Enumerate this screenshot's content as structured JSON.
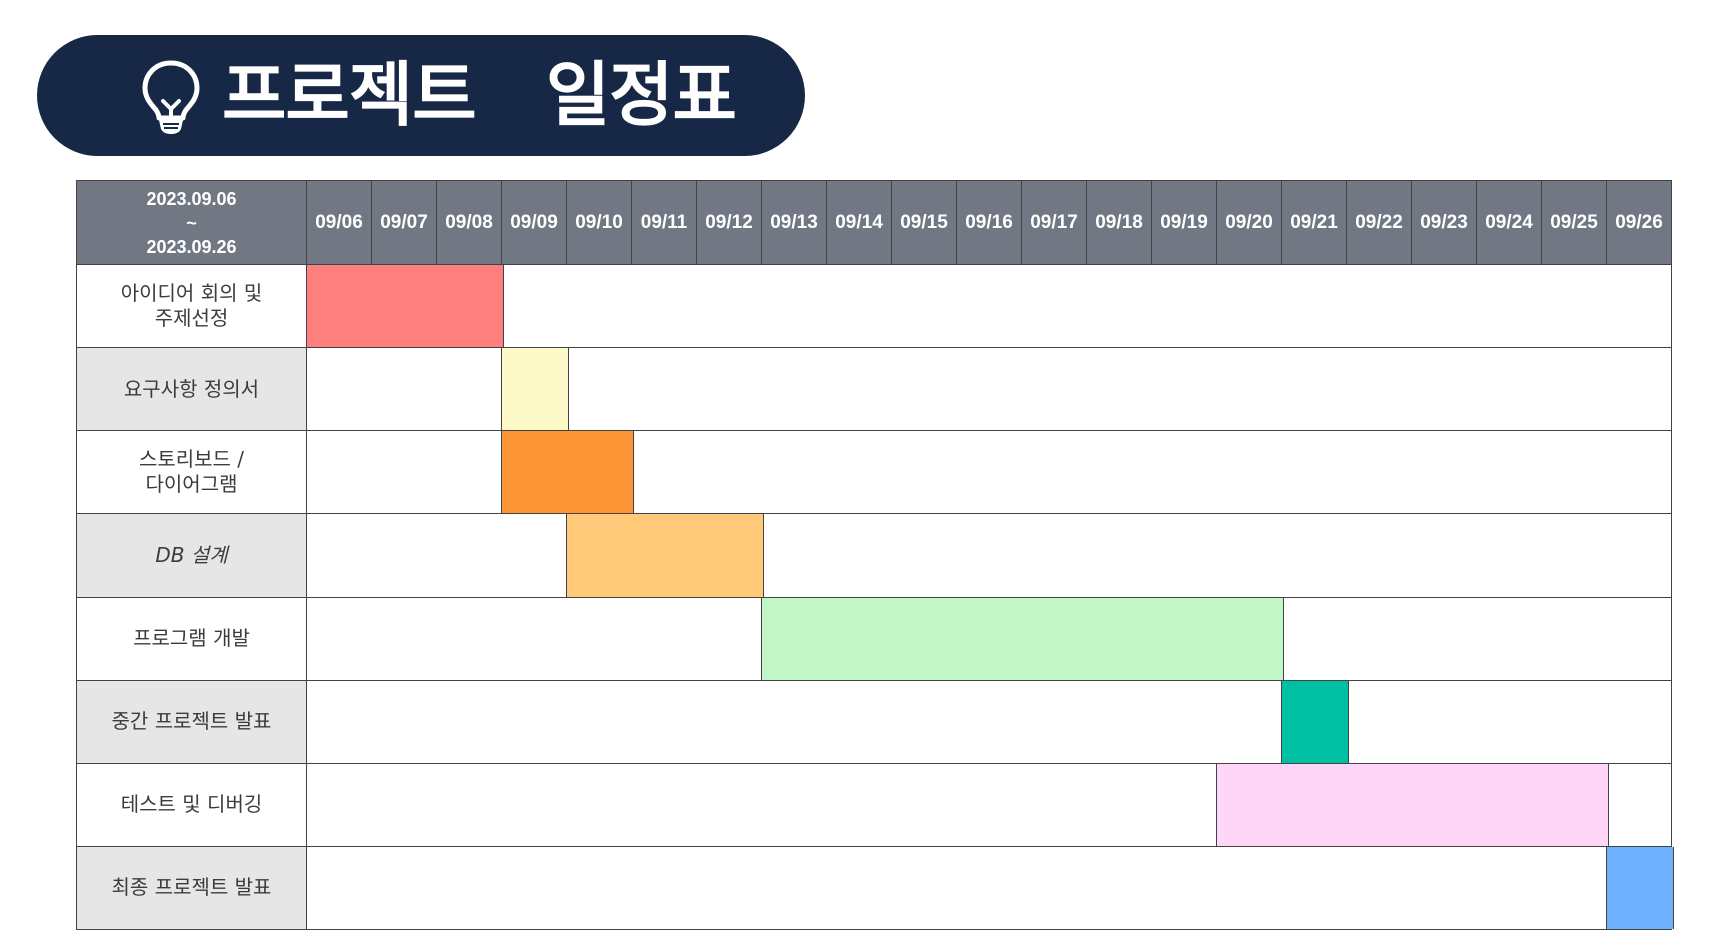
{
  "title": {
    "text": "프로젝트   일정표",
    "icon": "lightbulb-icon",
    "background": "#172846"
  },
  "schedule": {
    "range_start": "2023.09.06",
    "range_sep": "~",
    "range_end": "2023.09.26",
    "dates": [
      "09/06",
      "09/07",
      "09/08",
      "09/09",
      "09/10",
      "09/11",
      "09/12",
      "09/13",
      "09/14",
      "09/15",
      "09/16",
      "09/17",
      "09/18",
      "09/19",
      "09/20",
      "09/21",
      "09/22",
      "09/23",
      "09/24",
      "09/25",
      "09/26"
    ],
    "tasks": [
      {
        "label": "아이디어 회의 및\n주제선정",
        "start": "09/06",
        "end": "09/08",
        "color": "#ff7f7f"
      },
      {
        "label": "요구사항 정의서",
        "start": "09/09",
        "end": "09/09",
        "color": "#fdf9c9"
      },
      {
        "label": "스토리보드 /\n다이어그램",
        "start": "09/09",
        "end": "09/10",
        "color": "#fb9535"
      },
      {
        "label": "DB 설계",
        "start": "09/10",
        "end": "09/12",
        "color": "#ffc979"
      },
      {
        "label": "프로그램 개발",
        "start": "09/13",
        "end": "09/20",
        "color": "#c2f6c6"
      },
      {
        "label": "중간 프로젝트 발표",
        "start": "09/21",
        "end": "09/21",
        "color": "#00c0a4"
      },
      {
        "label": "테스트 및 디버깅",
        "start": "09/20",
        "end": "09/25",
        "color": "#ffd6f7"
      },
      {
        "label": "최종  프로젝트 발표",
        "start": "09/26",
        "end": "09/26",
        "color": "#6eaffe"
      }
    ]
  }
}
